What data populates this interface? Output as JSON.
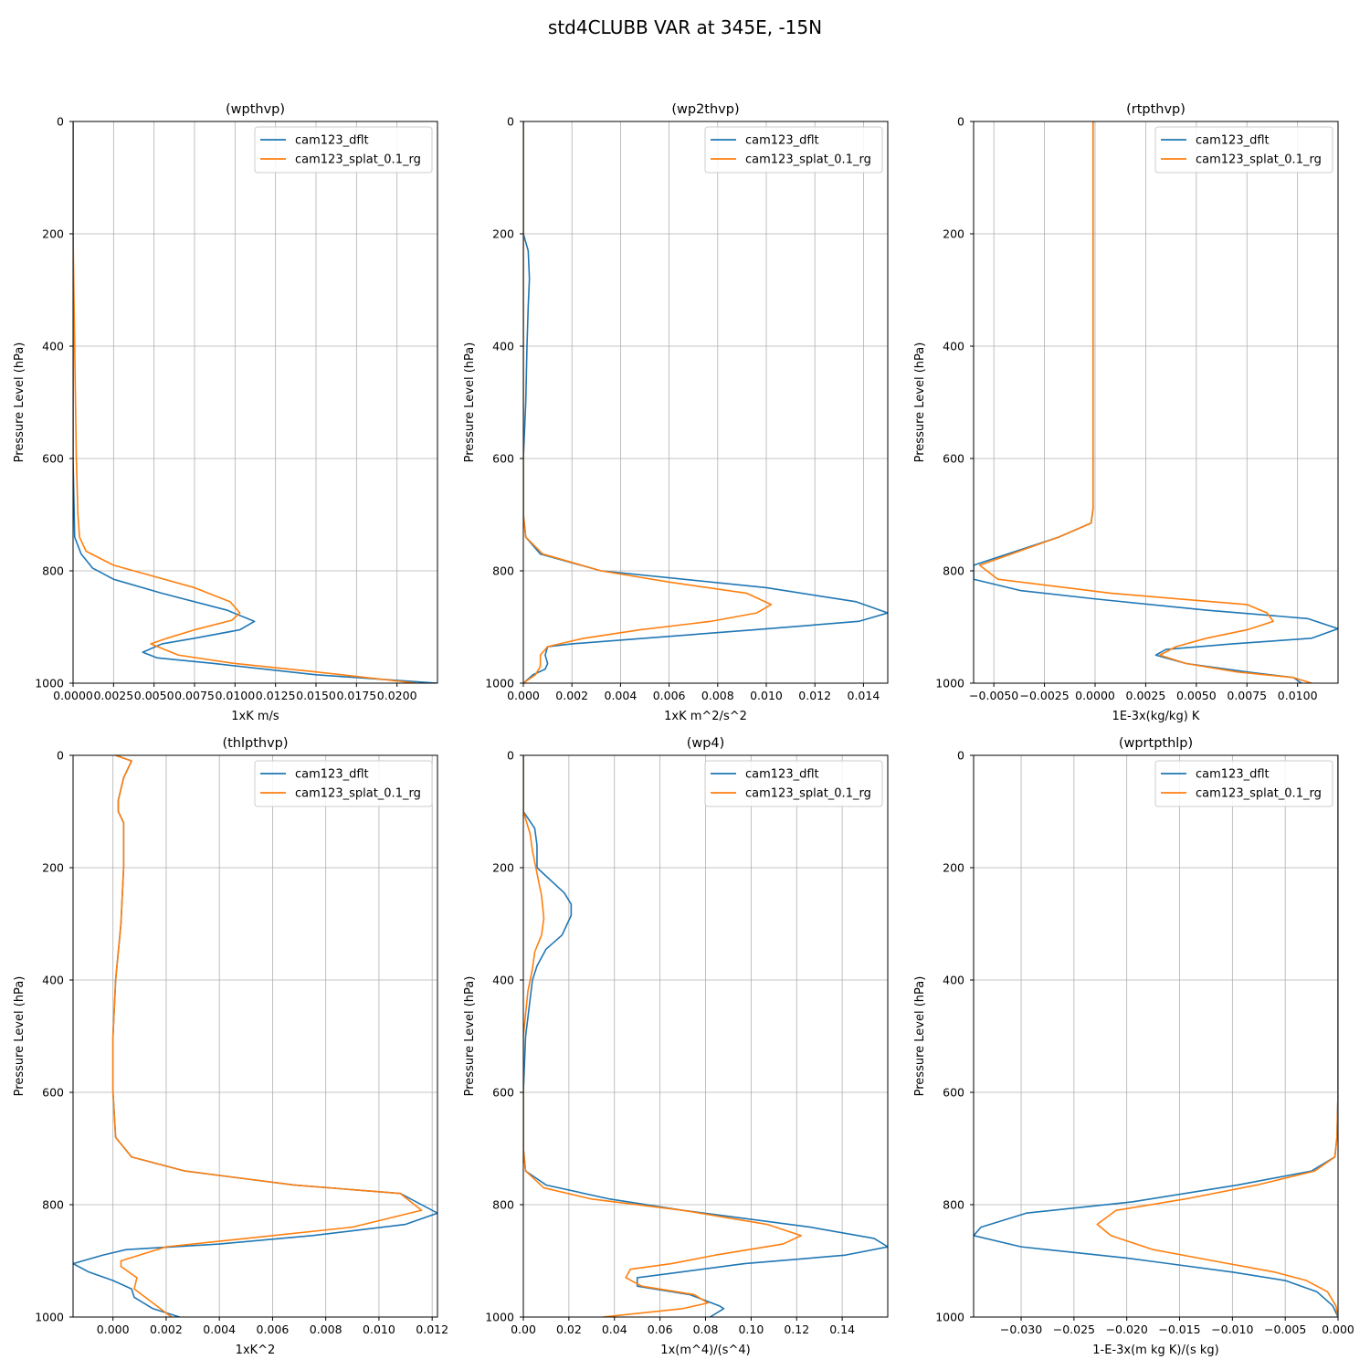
{
  "figure_title": "std4CLUBB VAR at 345E, -15N",
  "colors": {
    "series0": "#1f77b4",
    "series1": "#ff7f0e",
    "grid": "#b0b0b0",
    "axes": "#000000"
  },
  "chart_data": [
    {
      "type": "line",
      "title": "(wpthvp)",
      "xlabel": "1xK m/s",
      "ylabel": "Pressure Level (hPa)",
      "xlim": [
        0,
        0.0225
      ],
      "ylim": [
        1000,
        0
      ],
      "xticks": [
        0,
        0.0025,
        0.005,
        0.0075,
        0.01,
        0.0125,
        0.015,
        0.0175,
        0.02
      ],
      "xtick_labels": [
        "0.0000",
        "0.0025",
        "0.0050",
        "0.0075",
        "0.0100",
        "0.0125",
        "0.0150",
        "0.0175",
        "0.0200"
      ],
      "yticks": [
        0,
        200,
        400,
        600,
        800,
        1000
      ],
      "ytick_labels": [
        "0",
        "200",
        "400",
        "600",
        "800",
        "1000"
      ],
      "legend": [
        "cam123_dflt",
        "cam123_splat_0.1_rg"
      ],
      "series": [
        {
          "name": "cam123_dflt",
          "x": [
            0,
            0,
            0,
            0,
            0,
            0,
            0.0001,
            0.0005,
            0.0012,
            0.0025,
            0.0055,
            0.0095,
            0.0112,
            0.0103,
            0.0075,
            0.0055,
            0.0043,
            0.0052,
            0.0087,
            0.015,
            0.0225
          ],
          "y": [
            0,
            100,
            200,
            300,
            400,
            600,
            740,
            770,
            795,
            815,
            840,
            870,
            890,
            905,
            920,
            930,
            945,
            955,
            965,
            985,
            1000
          ]
        },
        {
          "name": "cam123_splat_0.1_rg",
          "x": [
            0,
            0,
            0.0001,
            0.0002,
            0.0003,
            0.0004,
            0.0008,
            0.0025,
            0.0075,
            0.0097,
            0.0103,
            0.0098,
            0.0075,
            0.0058,
            0.0048,
            0.0065,
            0.01,
            0.015,
            0.0212
          ],
          "y": [
            0,
            200,
            400,
            600,
            700,
            740,
            765,
            790,
            830,
            855,
            875,
            888,
            905,
            920,
            930,
            950,
            965,
            980,
            1000
          ]
        }
      ]
    },
    {
      "type": "line",
      "title": "(wp2thvp)",
      "xlabel": "1xK m^2/s^2",
      "ylabel": "Pressure Level (hPa)",
      "xlim": [
        0,
        0.015
      ],
      "ylim": [
        1000,
        0
      ],
      "xticks": [
        0,
        0.002,
        0.004,
        0.006,
        0.008,
        0.01,
        0.012,
        0.014
      ],
      "xtick_labels": [
        "0.000",
        "0.002",
        "0.004",
        "0.006",
        "0.008",
        "0.010",
        "0.012",
        "0.014"
      ],
      "yticks": [
        0,
        200,
        400,
        600,
        800,
        1000
      ],
      "ytick_labels": [
        "0",
        "200",
        "400",
        "600",
        "800",
        "1000"
      ],
      "legend": [
        "cam123_dflt",
        "cam123_splat_0.1_rg"
      ],
      "series": [
        {
          "name": "cam123_dflt",
          "x": [
            0,
            0,
            0.0002,
            0.00025,
            0.0002,
            0.00015,
            0.0001,
            0,
            0,
            0.0001,
            0.0007,
            0.0032,
            0.01,
            0.0137,
            0.015,
            0.0138,
            0.0095,
            0.005,
            0.002,
            0.001,
            0.0009,
            0.001,
            0.0009,
            0.0004,
            0
          ],
          "y": [
            0,
            200,
            230,
            280,
            330,
            400,
            500,
            600,
            700,
            740,
            770,
            800,
            830,
            855,
            875,
            890,
            905,
            920,
            930,
            935,
            950,
            965,
            975,
            985,
            1000
          ]
        },
        {
          "name": "cam123_splat_0.1_rg",
          "x": [
            0,
            0,
            0,
            0,
            0.0001,
            0.0008,
            0.0032,
            0.006,
            0.0092,
            0.0102,
            0.0096,
            0.0077,
            0.0048,
            0.0025,
            0.001,
            0.0007,
            0.0007,
            0.0005,
            0
          ],
          "y": [
            0,
            200,
            400,
            700,
            740,
            770,
            800,
            820,
            840,
            860,
            875,
            890,
            905,
            920,
            935,
            950,
            970,
            985,
            1000
          ]
        }
      ]
    },
    {
      "type": "line",
      "title": "(rtpthvp)",
      "xlabel": "1E-3x(kg/kg) K",
      "ylabel": "Pressure Level (hPa)",
      "xlim": [
        -0.006,
        0.012
      ],
      "ylim": [
        1000,
        0
      ],
      "xticks": [
        -0.005,
        -0.0025,
        0,
        0.0025,
        0.005,
        0.0075,
        0.01
      ],
      "xtick_labels": [
        "−0.0050",
        "−0.0025",
        "0.0000",
        "0.0025",
        "0.0050",
        "0.0075",
        "0.0100"
      ],
      "yticks": [
        0,
        200,
        400,
        600,
        800,
        1000
      ],
      "ytick_labels": [
        "0",
        "200",
        "400",
        "600",
        "800",
        "1000"
      ],
      "legend": [
        "cam123_dflt",
        "cam123_splat_0.1_rg"
      ],
      "series": [
        {
          "name": "cam123_dflt",
          "x": [
            -0.0001,
            -0.0001,
            -0.0001,
            -0.0001,
            -0.0001,
            -0.0002,
            -0.0018,
            -0.006,
            -0.006,
            -0.0037,
            0,
            0.0055,
            0.0105,
            0.012,
            0.0107,
            0.0068,
            0.0035,
            0.003,
            0.0045,
            0.0075,
            0.0098,
            0.0102
          ],
          "y": [
            0,
            200,
            400,
            600,
            690,
            715,
            740,
            790,
            815,
            835,
            850,
            870,
            885,
            903,
            920,
            930,
            940,
            950,
            965,
            980,
            990,
            1000
          ]
        },
        {
          "name": "cam123_splat_0.1_rg",
          "x": [
            -0.0001,
            -0.0001,
            -0.0001,
            -0.0001,
            -0.0001,
            -0.0002,
            -0.0018,
            -0.0057,
            -0.0048,
            0.0008,
            0.0075,
            0.0085,
            0.0088,
            0.0075,
            0.0055,
            0.004,
            0.0032,
            0.0045,
            0.007,
            0.0098,
            0.0107
          ],
          "y": [
            0,
            200,
            400,
            600,
            690,
            715,
            740,
            790,
            815,
            840,
            860,
            875,
            890,
            905,
            920,
            935,
            950,
            965,
            980,
            990,
            1000
          ]
        }
      ]
    },
    {
      "type": "line",
      "title": "(thlpthvp)",
      "xlabel": "1xK^2",
      "ylabel": "Pressure Level (hPa)",
      "xlim": [
        -0.0015,
        0.0122
      ],
      "ylim": [
        1000,
        0
      ],
      "xticks": [
        0,
        0.002,
        0.004,
        0.006,
        0.008,
        0.01,
        0.012
      ],
      "xtick_labels": [
        "0.000",
        "0.002",
        "0.004",
        "0.006",
        "0.008",
        "0.010",
        "0.012"
      ],
      "yticks": [
        0,
        200,
        400,
        600,
        800,
        1000
      ],
      "ytick_labels": [
        "0",
        "200",
        "400",
        "600",
        "800",
        "1000"
      ],
      "legend": [
        "cam123_dflt",
        "cam123_splat_0.1_rg"
      ],
      "series": [
        {
          "name": "cam123_dflt",
          "x": [
            0.0001,
            0.0007,
            0.0004,
            0.0002,
            0.0002,
            0.0004,
            0.0004,
            0.0003,
            0.0001,
            0,
            0,
            0.0001,
            0.0007,
            0.0027,
            0.0068,
            0.0108,
            0.0122,
            0.011,
            0.0075,
            0.004,
            0.0005,
            -0.0004,
            -0.0015,
            -0.0009,
            0,
            0.0007,
            0.0008,
            0.0015,
            0.0025
          ],
          "y": [
            0,
            10,
            40,
            80,
            100,
            120,
            200,
            300,
            400,
            500,
            600,
            680,
            715,
            740,
            765,
            780,
            815,
            835,
            855,
            870,
            880,
            890,
            905,
            920,
            935,
            950,
            965,
            985,
            1000
          ]
        },
        {
          "name": "cam123_splat_0.1_rg",
          "x": [
            0.0001,
            0.0007,
            0.0004,
            0.0002,
            0.0002,
            0.0004,
            0.0004,
            0.0003,
            0.0001,
            0,
            0,
            0.0001,
            0.0007,
            0.0027,
            0.0068,
            0.0108,
            0.0116,
            0.009,
            0.005,
            0.002,
            0.0003,
            0.0003,
            0.0009,
            0.0008,
            0.0015,
            0.0022
          ],
          "y": [
            0,
            10,
            40,
            80,
            100,
            120,
            200,
            300,
            400,
            500,
            600,
            680,
            715,
            740,
            765,
            780,
            810,
            840,
            860,
            875,
            900,
            910,
            930,
            950,
            975,
            1000
          ]
        }
      ]
    },
    {
      "type": "line",
      "title": "(wp4)",
      "xlabel": "1x(m^4)/(s^4)",
      "ylabel": "Pressure Level (hPa)",
      "xlim": [
        0,
        0.16
      ],
      "ylim": [
        1000,
        0
      ],
      "xticks": [
        0,
        0.02,
        0.04,
        0.06,
        0.08,
        0.1,
        0.12,
        0.14
      ],
      "xtick_labels": [
        "0.00",
        "0.02",
        "0.04",
        "0.06",
        "0.08",
        "0.10",
        "0.12",
        "0.14"
      ],
      "yticks": [
        0,
        200,
        400,
        600,
        800,
        1000
      ],
      "ytick_labels": [
        "0",
        "200",
        "400",
        "600",
        "800",
        "1000"
      ],
      "legend": [
        "cam123_dflt",
        "cam123_splat_0.1_rg"
      ],
      "series": [
        {
          "name": "cam123_dflt",
          "x": [
            0,
            0,
            0.005,
            0.006,
            0.006,
            0.01,
            0.018,
            0.021,
            0.021,
            0.017,
            0.01,
            0.006,
            0.004,
            0.001,
            0,
            0,
            0.001,
            0.01,
            0.038,
            0.07,
            0.126,
            0.154,
            0.16,
            0.141,
            0.097,
            0.069,
            0.05,
            0.05,
            0.073,
            0.086,
            0.088,
            0.082
          ],
          "y": [
            0,
            100,
            130,
            160,
            200,
            215,
            245,
            265,
            285,
            320,
            345,
            375,
            400,
            500,
            600,
            700,
            740,
            765,
            790,
            810,
            840,
            860,
            875,
            890,
            905,
            920,
            930,
            945,
            960,
            980,
            985,
            1000
          ]
        },
        {
          "name": "cam123_splat_0.1_rg",
          "x": [
            0,
            0,
            0.003,
            0.004,
            0.006,
            0.008,
            0.009,
            0.008,
            0.005,
            0.004,
            0.002,
            0,
            0,
            0.001,
            0.009,
            0.03,
            0.07,
            0.107,
            0.122,
            0.114,
            0.084,
            0.065,
            0.047,
            0.045,
            0.052,
            0.075,
            0.081,
            0.07,
            0.035
          ],
          "y": [
            0,
            100,
            140,
            170,
            210,
            250,
            290,
            320,
            350,
            380,
            420,
            500,
            700,
            740,
            770,
            790,
            810,
            835,
            855,
            870,
            890,
            905,
            915,
            930,
            945,
            960,
            975,
            985,
            1000
          ]
        }
      ]
    },
    {
      "type": "line",
      "title": "(wprtpthlp)",
      "xlabel": "1-E-3x(m kg K)/(s kg)",
      "ylabel": "Pressure Level (hPa)",
      "xlim": [
        -0.0345,
        0
      ],
      "ylim": [
        1000,
        0
      ],
      "xticks": [
        -0.03,
        -0.025,
        -0.02,
        -0.015,
        -0.01,
        -0.005,
        0
      ],
      "xtick_labels": [
        "−0.030",
        "−0.025",
        "−0.020",
        "−0.015",
        "−0.010",
        "−0.005",
        "0.000"
      ],
      "yticks": [
        0,
        200,
        400,
        600,
        800,
        1000
      ],
      "ytick_labels": [
        "0",
        "200",
        "400",
        "600",
        "800",
        "1000"
      ],
      "legend": [
        "cam123_dflt",
        "cam123_splat_0.1_rg"
      ],
      "series": [
        {
          "name": "cam123_dflt",
          "x": [
            0,
            0,
            0,
            0,
            -0.0001,
            -0.0003,
            -0.0025,
            -0.0095,
            -0.0195,
            -0.0295,
            -0.0338,
            -0.0345,
            -0.03,
            -0.02,
            -0.01,
            -0.005,
            -0.002,
            -0.0005,
            0
          ],
          "y": [
            0,
            200,
            400,
            600,
            680,
            715,
            740,
            765,
            795,
            815,
            840,
            855,
            875,
            895,
            920,
            935,
            955,
            980,
            1000
          ]
        },
        {
          "name": "cam123_splat_0.1_rg",
          "x": [
            0,
            0,
            0,
            0,
            -0.0001,
            -0.0003,
            -0.0022,
            -0.0077,
            -0.0145,
            -0.021,
            -0.0228,
            -0.0215,
            -0.0175,
            -0.0118,
            -0.006,
            -0.003,
            -0.001,
            -0.0002,
            0
          ],
          "y": [
            0,
            200,
            400,
            600,
            680,
            715,
            740,
            765,
            790,
            810,
            835,
            855,
            880,
            900,
            920,
            935,
            955,
            980,
            1000
          ]
        }
      ]
    }
  ]
}
